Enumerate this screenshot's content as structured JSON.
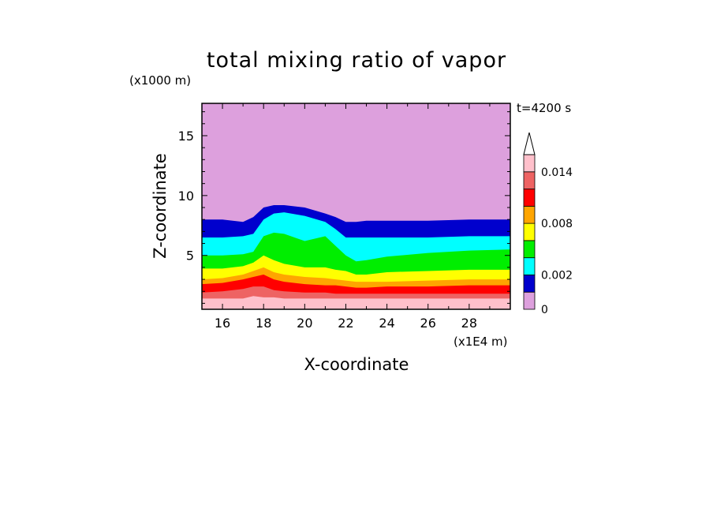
{
  "chart_data": {
    "type": "heatmap",
    "subtype": "filled-contour",
    "title": "total mixing ratio of vapor",
    "xlabel": "X-coordinate",
    "ylabel": "Z-coordinate",
    "x_multiplier_label": "(x1E4 m)",
    "y_multiplier_label": "(x1000 m)",
    "time_label": "t=4200 s",
    "xlim": [
      15,
      30
    ],
    "ylim": [
      0.5,
      17.7
    ],
    "x_ticks": [
      16,
      18,
      20,
      22,
      24,
      26,
      28
    ],
    "y_ticks": [
      5,
      10,
      15
    ],
    "colorbar": {
      "levels": [
        0,
        0.001,
        0.002,
        0.004,
        0.006,
        0.008,
        0.01,
        0.012,
        0.014,
        0.016
      ],
      "colors": [
        "#dda0dd",
        "#0000cd",
        "#00ffff",
        "#00ee00",
        "#ffff00",
        "#ffa500",
        "#ff0000",
        "#ee6363",
        "#ffc0cb"
      ],
      "tick_labels": [
        "0",
        "0.002",
        "0.008",
        "0.014"
      ],
      "tick_values": [
        0,
        0.002,
        0.008,
        0.014
      ],
      "extend": "max"
    },
    "contour_levels_z_by_x": {
      "x": [
        15,
        16,
        17,
        17.5,
        18,
        18.5,
        19,
        20,
        21,
        21.5,
        22,
        22.5,
        23,
        24,
        26,
        28,
        30
      ],
      "z_0.001": [
        8.0,
        8.0,
        7.8,
        8.2,
        9.0,
        9.2,
        9.2,
        9.0,
        8.5,
        8.2,
        7.8,
        7.8,
        7.9,
        7.9,
        7.9,
        8.0,
        8.0
      ],
      "z_0.002": [
        6.5,
        6.5,
        6.6,
        6.8,
        8.0,
        8.5,
        8.6,
        8.3,
        7.8,
        7.2,
        6.5,
        6.5,
        6.5,
        6.5,
        6.5,
        6.6,
        6.6
      ],
      "z_0.004": [
        5.0,
        5.0,
        5.1,
        5.3,
        6.6,
        6.9,
        6.8,
        6.2,
        6.6,
        5.8,
        5.0,
        4.5,
        4.6,
        4.9,
        5.2,
        5.4,
        5.5
      ],
      "z_0.006": [
        3.9,
        3.9,
        4.1,
        4.4,
        5.0,
        4.6,
        4.3,
        4.0,
        4.0,
        3.8,
        3.7,
        3.4,
        3.4,
        3.6,
        3.7,
        3.8,
        3.8
      ],
      "z_0.008": [
        3.0,
        3.1,
        3.4,
        3.7,
        4.0,
        3.6,
        3.4,
        3.2,
        3.1,
        3.0,
        2.9,
        2.8,
        2.8,
        2.8,
        2.9,
        3.0,
        3.0
      ],
      "z_0.010": [
        2.6,
        2.7,
        3.0,
        3.2,
        3.4,
        3.0,
        2.8,
        2.6,
        2.5,
        2.5,
        2.4,
        2.3,
        2.3,
        2.4,
        2.4,
        2.5,
        2.5
      ],
      "z_0.012": [
        1.9,
        2.0,
        2.2,
        2.4,
        2.4,
        2.1,
        2.0,
        1.9,
        1.9,
        1.8,
        1.8,
        1.8,
        1.8,
        1.8,
        1.8,
        1.8,
        1.8
      ],
      "z_0.014": [
        1.4,
        1.4,
        1.4,
        1.6,
        1.5,
        1.5,
        1.4,
        1.4,
        1.4,
        1.4,
        1.4,
        1.4,
        1.4,
        1.4,
        1.4,
        1.4,
        1.4
      ],
      "z_0.016": [
        0.9,
        0.9,
        0.8,
        0.9,
        0.9,
        0.8,
        0.8,
        0.8,
        0.8,
        0.8,
        0.8,
        0.8,
        0.8,
        0.8,
        0.8,
        0.8,
        0.8
      ]
    }
  }
}
